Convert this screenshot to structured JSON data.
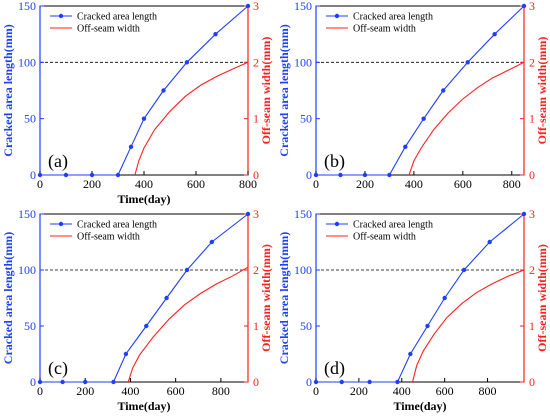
{
  "chart_data": [
    {
      "type": "line",
      "panel_label": "(a)",
      "xlabel": "Time(day)",
      "ylabel_left": "Cracked area length(mm)",
      "ylabel_right": "Off-seam width(mm)",
      "xlim": [
        0,
        800
      ],
      "xticks": [
        0,
        200,
        400,
        600,
        800
      ],
      "ylim_left": [
        0,
        150
      ],
      "yticks_left": [
        0,
        50,
        100,
        150
      ],
      "ylim_right": [
        0,
        3
      ],
      "yticks_right": [
        0,
        1,
        2,
        3
      ],
      "reference_line_left": 100,
      "series": [
        {
          "name": "Cracked area length",
          "axis": "left",
          "color": "#1f3fff",
          "markers": true,
          "x": [
            0,
            100,
            200,
            300,
            350,
            400,
            475,
            565,
            675,
            800
          ],
          "y": [
            0,
            0,
            0,
            0,
            25,
            50,
            75,
            100,
            125,
            150
          ]
        },
        {
          "name": "Off-seam width",
          "axis": "right",
          "color": "#ff1f1f",
          "markers": false,
          "x": [
            365,
            380,
            400,
            440,
            500,
            560,
            620,
            680,
            740,
            800
          ],
          "y": [
            0,
            0.25,
            0.48,
            0.8,
            1.13,
            1.4,
            1.6,
            1.75,
            1.88,
            2.0
          ]
        }
      ]
    },
    {
      "type": "line",
      "panel_label": "(b)",
      "xlabel": "",
      "ylabel_left": "Cracked area length(mm)",
      "ylabel_right": "Off-seam width(mm)",
      "xlim": [
        0,
        850
      ],
      "xticks": [
        0,
        200,
        400,
        600,
        800
      ],
      "ylim_left": [
        0,
        150
      ],
      "yticks_left": [
        0,
        50,
        100,
        150
      ],
      "ylim_right": [
        0,
        3
      ],
      "yticks_right": [
        0,
        1,
        2,
        3
      ],
      "reference_line_left": 100,
      "series": [
        {
          "name": "Cracked area length",
          "axis": "left",
          "color": "#1f3fff",
          "markers": true,
          "x": [
            0,
            100,
            200,
            300,
            365,
            440,
            520,
            620,
            730,
            850
          ],
          "y": [
            0,
            0,
            0,
            0,
            25,
            50,
            75,
            100,
            125,
            150
          ]
        },
        {
          "name": "Off-seam width",
          "axis": "right",
          "color": "#ff1f1f",
          "markers": false,
          "x": [
            380,
            400,
            430,
            480,
            540,
            600,
            660,
            720,
            790,
            850
          ],
          "y": [
            0,
            0.25,
            0.48,
            0.8,
            1.1,
            1.35,
            1.55,
            1.72,
            1.87,
            2.0
          ]
        }
      ]
    },
    {
      "type": "line",
      "panel_label": "(c)",
      "xlabel": "Time(day)",
      "ylabel_left": "Cracked area length(mm)",
      "ylabel_right": "Off-seam width(mm)",
      "xlim": [
        0,
        920
      ],
      "xticks": [
        0,
        200,
        400,
        600,
        800
      ],
      "ylim_left": [
        0,
        150
      ],
      "yticks_left": [
        0,
        50,
        100,
        150
      ],
      "ylim_right": [
        0,
        3
      ],
      "yticks_right": [
        0,
        1,
        2,
        3
      ],
      "reference_line_left": 100,
      "series": [
        {
          "name": "Cracked area length",
          "axis": "left",
          "color": "#1f3fff",
          "markers": true,
          "x": [
            0,
            100,
            200,
            325,
            380,
            470,
            560,
            650,
            760,
            920
          ],
          "y": [
            0,
            0,
            0,
            0,
            25,
            50,
            75,
            100,
            125,
            150
          ]
        },
        {
          "name": "Off-seam width",
          "axis": "right",
          "color": "#ff1f1f",
          "markers": false,
          "x": [
            390,
            410,
            440,
            500,
            570,
            640,
            710,
            780,
            850,
            920
          ],
          "y": [
            0,
            0.25,
            0.48,
            0.8,
            1.12,
            1.38,
            1.58,
            1.75,
            1.89,
            2.05
          ]
        }
      ]
    },
    {
      "type": "line",
      "panel_label": "(d)",
      "xlabel": "Time(day)",
      "ylabel_left": "Cracked area length(mm)",
      "ylabel_right": "Off-seam width(mm)",
      "xlim": [
        0,
        970
      ],
      "xticks": [
        0,
        200,
        400,
        600,
        800
      ],
      "ylim_left": [
        0,
        150
      ],
      "yticks_left": [
        0,
        50,
        100,
        150
      ],
      "ylim_right": [
        0,
        3
      ],
      "yticks_right": [
        0,
        1,
        2,
        3
      ],
      "reference_line_left": 100,
      "series": [
        {
          "name": "Cracked area length",
          "axis": "left",
          "color": "#1f3fff",
          "markers": true,
          "x": [
            0,
            120,
            250,
            380,
            440,
            520,
            600,
            690,
            810,
            970
          ],
          "y": [
            0,
            0,
            0,
            0,
            25,
            50,
            75,
            100,
            125,
            150
          ]
        },
        {
          "name": "Off-seam width",
          "axis": "right",
          "color": "#ff1f1f",
          "markers": false,
          "x": [
            450,
            470,
            500,
            550,
            610,
            680,
            750,
            820,
            890,
            970
          ],
          "y": [
            0,
            0.3,
            0.55,
            0.85,
            1.15,
            1.4,
            1.6,
            1.75,
            1.88,
            2.0
          ]
        }
      ]
    }
  ]
}
